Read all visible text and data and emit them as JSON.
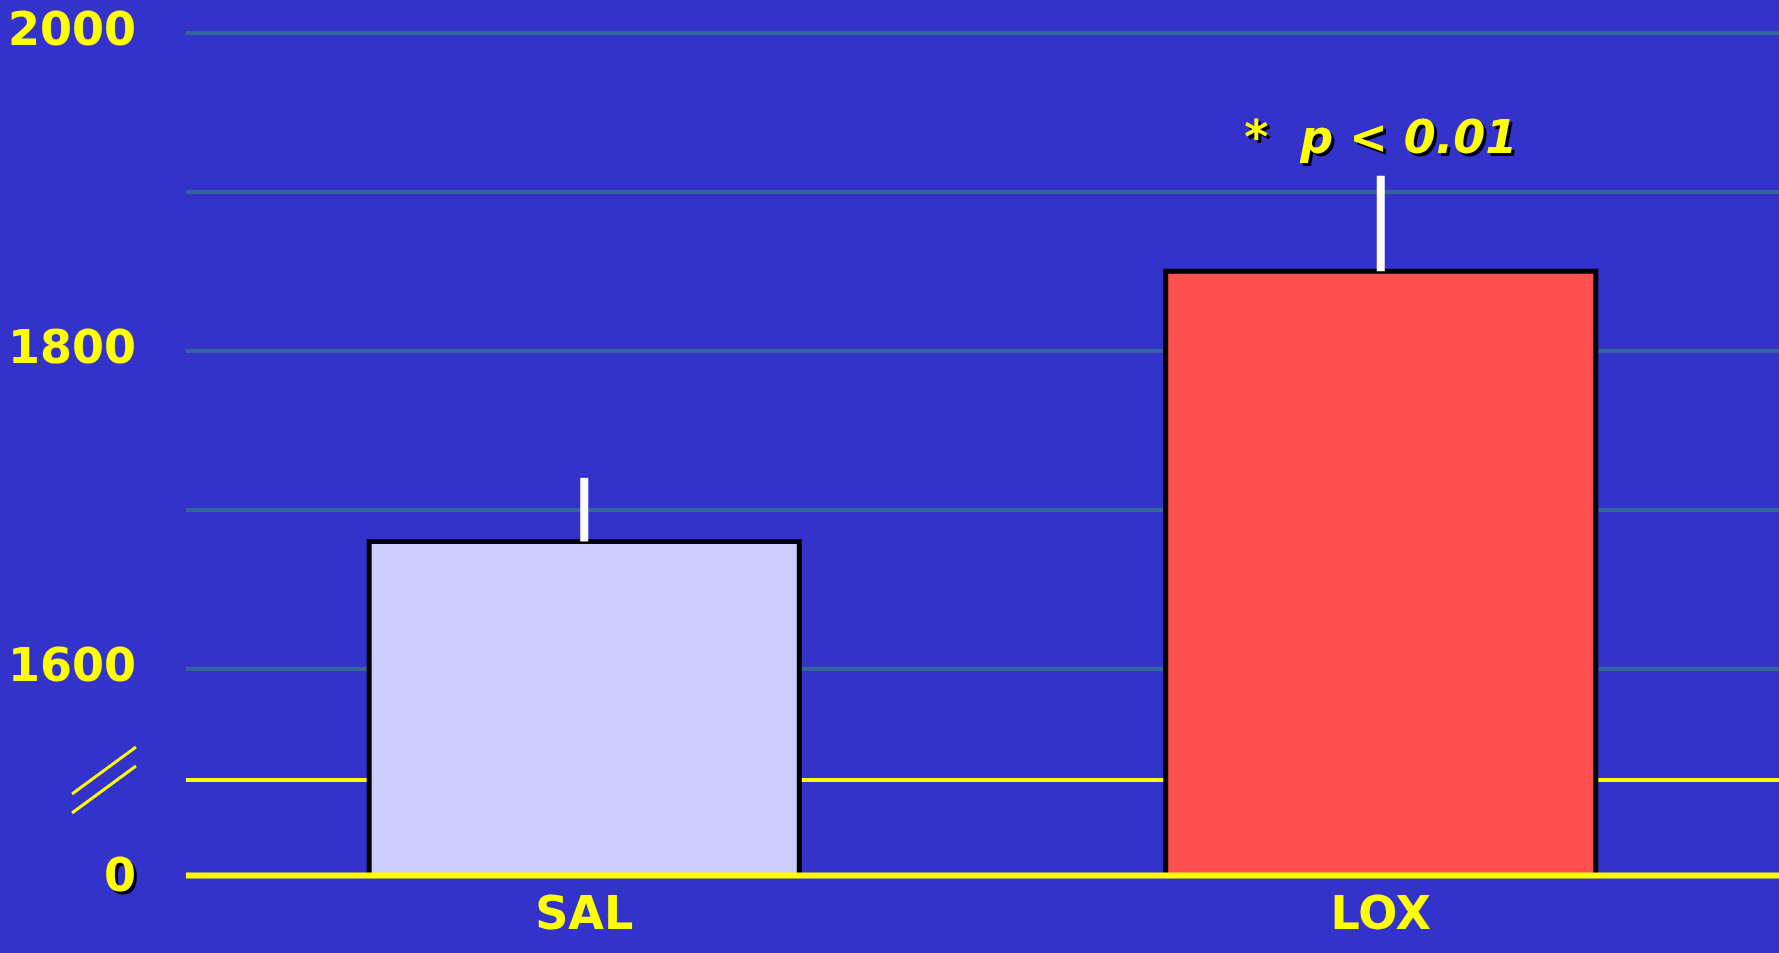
{
  "chart_data": {
    "type": "bar",
    "categories": [
      "SAL",
      "LOX"
    ],
    "values": [
      1680,
      1850
    ],
    "colors": [
      "#ccccff",
      "#ff5050"
    ],
    "errors": [
      [
        1680,
        1720
      ],
      [
        1850,
        1910
      ]
    ],
    "ylim": [
      1470,
      2000
    ],
    "yticks": [
      1600,
      {
        "value": 1700,
        "label": null
      },
      1800,
      {
        "value": 1900,
        "label": null
      },
      2000
    ],
    "grid": "y",
    "legend": false,
    "ref_lines": [
      {
        "axis": "y",
        "value": 1530,
        "label": null,
        "color": "#ffff00"
      }
    ],
    "annotations": [
      "0",
      "*  p < 0.01"
    ]
  }
}
